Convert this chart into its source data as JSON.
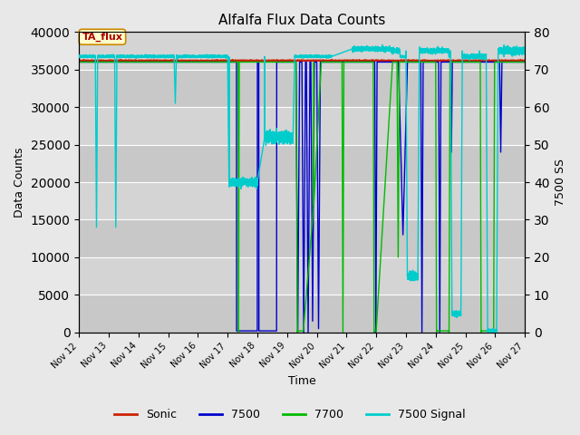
{
  "title": "Alfalfa Flux Data Counts",
  "xlabel": "Time",
  "ylabel_left": "Data Counts",
  "ylabel_right": "7500 SS",
  "ylim_left": [
    0,
    40000
  ],
  "ylim_right": [
    0,
    80
  ],
  "background_color": "#e8e8e8",
  "plot_bg_color": "#d4d4d4",
  "annotation_text": "TA_flux",
  "annotation_color": "#aa0000",
  "annotation_bg": "#ffffcc",
  "x_start": 12,
  "x_end": 27,
  "x_ticks": [
    12,
    13,
    14,
    15,
    16,
    17,
    18,
    19,
    20,
    21,
    22,
    23,
    24,
    25,
    26,
    27
  ],
  "x_tick_labels": [
    "Nov 12",
    "Nov 13",
    "Nov 14",
    "Nov 15",
    "Nov 16",
    "Nov 17",
    "Nov 18",
    "Nov 19",
    "Nov 20",
    "Nov 21",
    "Nov 22",
    "Nov 23",
    "Nov 24",
    "Nov 25",
    "Nov 26",
    "Nov 27"
  ],
  "high_val": 36000,
  "signal_high": 73.5
}
